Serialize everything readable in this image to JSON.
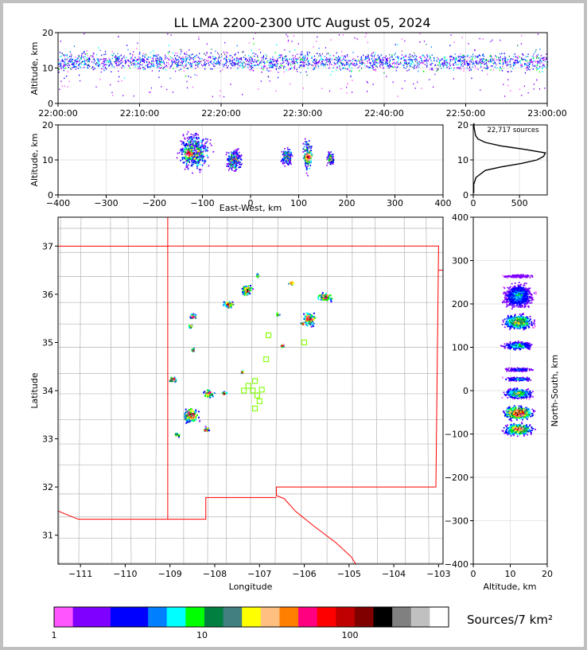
{
  "chart_data": [
    {
      "panel": "time-altitude",
      "type": "heatmap",
      "title": "LL LMA 2200-2300 UTC August 05, 2024",
      "ylabel": "Altitude, km",
      "xlabel": "",
      "ylim": [
        0,
        20
      ],
      "x_ticks": [
        "22:00:00",
        "22:10:00",
        "22:20:00",
        "22:30:00",
        "22:40:00",
        "22:50:00",
        "23:00:00"
      ],
      "y_ticks": [
        0,
        10,
        20
      ],
      "altitude_band_km": [
        7,
        17
      ],
      "peak_altitude_km": 12
    },
    {
      "panel": "east-west-altitude",
      "type": "heatmap",
      "xlabel": "East-West, km",
      "ylabel": "Altitude, km",
      "xlim": [
        -400,
        400
      ],
      "ylim": [
        0,
        20
      ],
      "x_ticks": [
        -400,
        -300,
        -200,
        -100,
        0,
        100,
        200,
        300,
        400
      ],
      "y_ticks": [
        0,
        10,
        20
      ],
      "clusters": [
        {
          "x_range": [
            -160,
            -75
          ],
          "alt_range": [
            6,
            19
          ],
          "peak": [
            -130,
            12
          ]
        },
        {
          "x_range": [
            -55,
            -15
          ],
          "alt_range": [
            6,
            14
          ]
        },
        {
          "x_range": [
            60,
            90
          ],
          "alt_range": [
            8,
            14
          ]
        },
        {
          "x_range": [
            105,
            130
          ],
          "alt_range": [
            5,
            18
          ],
          "peak": [
            118,
            11
          ]
        },
        {
          "x_range": [
            155,
            175
          ],
          "alt_range": [
            8,
            13
          ]
        }
      ]
    },
    {
      "panel": "altitude-histogram",
      "type": "line",
      "annotation": "22,717 sources",
      "xlim": [
        0,
        800
      ],
      "ylim": [
        0,
        20
      ],
      "x_ticks": [
        0,
        500
      ],
      "y_ticks": [
        0,
        10,
        20
      ],
      "profile": [
        {
          "alt": 0.5,
          "count": 5
        },
        {
          "alt": 3,
          "count": 5
        },
        {
          "alt": 5,
          "count": 30
        },
        {
          "alt": 7,
          "count": 130
        },
        {
          "alt": 8,
          "count": 300
        },
        {
          "alt": 9,
          "count": 520
        },
        {
          "alt": 10,
          "count": 690
        },
        {
          "alt": 11,
          "count": 760
        },
        {
          "alt": 12,
          "count": 780
        },
        {
          "alt": 13,
          "count": 560
        },
        {
          "alt": 14,
          "count": 300
        },
        {
          "alt": 15,
          "count": 130
        },
        {
          "alt": 16,
          "count": 50
        },
        {
          "alt": 17,
          "count": 25
        },
        {
          "alt": 19,
          "count": 10
        },
        {
          "alt": 20.5,
          "count": 5
        }
      ]
    },
    {
      "panel": "plan-view-map",
      "type": "heatmap",
      "xlabel": "Longitude",
      "ylabel": "Latitude",
      "xlim": [
        -111.5,
        -102.9
      ],
      "ylim": [
        30.4,
        37.6
      ],
      "x_ticks": [
        -111,
        -110,
        -109,
        -108,
        -107,
        -106,
        -105,
        -104,
        -103
      ],
      "y_ticks": [
        31,
        32,
        33,
        34,
        35,
        36,
        37
      ],
      "clusters": [
        {
          "lon": -107.3,
          "lat": 36.1,
          "w": 0.3,
          "h": 0.3
        },
        {
          "lon": -107.05,
          "lat": 36.4,
          "w": 0.1,
          "h": 0.1
        },
        {
          "lon": -106.3,
          "lat": 36.25,
          "w": 0.15,
          "h": 0.1
        },
        {
          "lon": -105.55,
          "lat": 35.95,
          "w": 0.4,
          "h": 0.25
        },
        {
          "lon": -105.9,
          "lat": 35.5,
          "w": 0.35,
          "h": 0.35
        },
        {
          "lon": -107.7,
          "lat": 35.8,
          "w": 0.35,
          "h": 0.2
        },
        {
          "lon": -106.6,
          "lat": 35.6,
          "w": 0.1,
          "h": 0.1
        },
        {
          "lon": -108.5,
          "lat": 35.55,
          "w": 0.2,
          "h": 0.15
        },
        {
          "lon": -108.55,
          "lat": 35.35,
          "w": 0.1,
          "h": 0.1
        },
        {
          "lon": -108.5,
          "lat": 34.85,
          "w": 0.1,
          "h": 0.1
        },
        {
          "lon": -106.5,
          "lat": 34.95,
          "w": 0.15,
          "h": 0.1
        },
        {
          "lon": -106.05,
          "lat": 35.4,
          "w": 0.1,
          "h": 0.1
        },
        {
          "lon": -107.4,
          "lat": 34.4,
          "w": 0.1,
          "h": 0.1
        },
        {
          "lon": -108.95,
          "lat": 34.25,
          "w": 0.25,
          "h": 0.15
        },
        {
          "lon": -108.15,
          "lat": 33.95,
          "w": 0.3,
          "h": 0.2
        },
        {
          "lon": -107.8,
          "lat": 33.95,
          "w": 0.15,
          "h": 0.1
        },
        {
          "lon": -108.55,
          "lat": 33.5,
          "w": 0.45,
          "h": 0.4
        },
        {
          "lon": -108.2,
          "lat": 33.2,
          "w": 0.15,
          "h": 0.15
        },
        {
          "lon": -108.85,
          "lat": 33.1,
          "w": 0.15,
          "h": 0.12
        }
      ],
      "stations": [
        {
          "lon": -106.8,
          "lat": 35.15
        },
        {
          "lon": -106.0,
          "lat": 35.0
        },
        {
          "lon": -106.85,
          "lat": 34.65
        },
        {
          "lon": -107.1,
          "lat": 34.2
        },
        {
          "lon": -107.25,
          "lat": 34.1
        },
        {
          "lon": -107.35,
          "lat": 34.0
        },
        {
          "lon": -107.15,
          "lat": 34.0
        },
        {
          "lon": -106.95,
          "lat": 34.02
        },
        {
          "lon": -107.05,
          "lat": 33.9
        },
        {
          "lon": -107.0,
          "lat": 33.78
        },
        {
          "lon": -107.1,
          "lat": 33.63
        }
      ]
    },
    {
      "panel": "altitude-north-south",
      "type": "heatmap",
      "xlabel": "Altitude, km",
      "ylabel": "North-South, km",
      "xlim": [
        0,
        20
      ],
      "ylim": [
        -400,
        400
      ],
      "x_ticks": [
        0,
        10,
        20
      ],
      "y_ticks": [
        -400,
        -300,
        -200,
        -100,
        0,
        100,
        200,
        300,
        400
      ],
      "clusters": [
        {
          "ns": 265,
          "half_km": 5,
          "peak": 0.1
        },
        {
          "ns": 220,
          "half_km": 35,
          "peak": 0.35
        },
        {
          "ns": 160,
          "half_km": 22,
          "peak": 0.65
        },
        {
          "ns": 105,
          "half_km": 12,
          "peak": 0.45
        },
        {
          "ns": 50,
          "half_km": 6,
          "peak": 0.25
        },
        {
          "ns": 28,
          "half_km": 6,
          "peak": 0.35
        },
        {
          "ns": -5,
          "half_km": 15,
          "peak": 0.55
        },
        {
          "ns": -50,
          "half_km": 20,
          "peak": 0.95
        },
        {
          "ns": -88,
          "half_km": 18,
          "peak": 0.75
        }
      ]
    },
    {
      "panel": "colorbar",
      "type": "table",
      "label": "Sources/7 km²",
      "tick_labels": [
        "1",
        "10",
        "100"
      ],
      "tick_positions": [
        0,
        0.375,
        0.75
      ],
      "colors": [
        "#ff55ff",
        "#8000ff",
        "#8000ff",
        "#0000ff",
        "#0000ff",
        "#0080ff",
        "#00ffff",
        "#00ff00",
        "#008040",
        "#408080",
        "#ffff00",
        "#ffbf80",
        "#ff8000",
        "#ff0080",
        "#ff0000",
        "#c00000",
        "#800000",
        "#000000",
        "#808080",
        "#c0c0c0",
        "#ffffff"
      ]
    }
  ],
  "colors": {
    "state_border": "#ff0000",
    "county_border": "#b4b4b4",
    "station_marker": "#7fff00",
    "grid": "#e6e6e6"
  }
}
